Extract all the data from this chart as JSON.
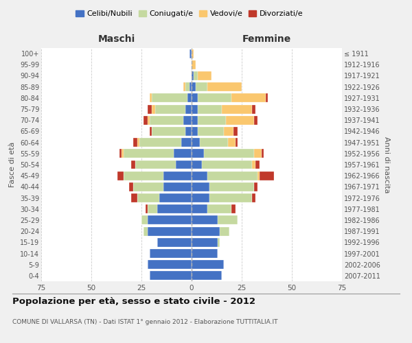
{
  "age_groups": [
    "0-4",
    "5-9",
    "10-14",
    "15-19",
    "20-24",
    "25-29",
    "30-34",
    "35-39",
    "40-44",
    "45-49",
    "50-54",
    "55-59",
    "60-64",
    "65-69",
    "70-74",
    "75-79",
    "80-84",
    "85-89",
    "90-94",
    "95-99",
    "100+"
  ],
  "birth_years": [
    "2007-2011",
    "2002-2006",
    "1997-2001",
    "1992-1996",
    "1987-1991",
    "1982-1986",
    "1977-1981",
    "1972-1976",
    "1967-1971",
    "1962-1966",
    "1957-1961",
    "1952-1956",
    "1947-1951",
    "1942-1946",
    "1937-1941",
    "1932-1936",
    "1927-1931",
    "1922-1926",
    "1917-1921",
    "1912-1916",
    "≤ 1911"
  ],
  "male": {
    "celibi": [
      21,
      22,
      21,
      17,
      22,
      22,
      17,
      16,
      14,
      14,
      8,
      9,
      5,
      3,
      4,
      3,
      2,
      1,
      0,
      0,
      1
    ],
    "coniugati": [
      0,
      0,
      0,
      0,
      2,
      3,
      5,
      11,
      15,
      20,
      20,
      25,
      21,
      17,
      17,
      15,
      18,
      2,
      0,
      0,
      0
    ],
    "vedovi": [
      0,
      0,
      0,
      0,
      0,
      0,
      0,
      0,
      0,
      0,
      0,
      1,
      1,
      0,
      1,
      2,
      1,
      1,
      0,
      0,
      0
    ],
    "divorziati": [
      0,
      0,
      0,
      0,
      0,
      0,
      1,
      3,
      2,
      3,
      2,
      1,
      2,
      1,
      2,
      2,
      0,
      0,
      0,
      0,
      0
    ]
  },
  "female": {
    "nubili": [
      15,
      16,
      13,
      13,
      14,
      13,
      8,
      9,
      9,
      8,
      5,
      6,
      4,
      3,
      3,
      3,
      3,
      2,
      1,
      0,
      0
    ],
    "coniugate": [
      0,
      0,
      0,
      1,
      5,
      10,
      12,
      21,
      22,
      25,
      25,
      25,
      14,
      13,
      14,
      12,
      17,
      6,
      2,
      0,
      0
    ],
    "vedove": [
      0,
      0,
      0,
      0,
      0,
      0,
      0,
      0,
      0,
      1,
      2,
      4,
      4,
      5,
      14,
      15,
      17,
      17,
      7,
      2,
      1
    ],
    "divorziate": [
      0,
      0,
      0,
      0,
      0,
      0,
      2,
      2,
      2,
      7,
      2,
      1,
      1,
      2,
      2,
      2,
      1,
      0,
      0,
      0,
      0
    ]
  },
  "colors": {
    "celibi": "#4472C4",
    "coniugati": "#C5D9A0",
    "vedovi": "#FAC76E",
    "divorziati": "#C0392B"
  },
  "xlim": 75,
  "title": "Popolazione per età, sesso e stato civile - 2012",
  "subtitle": "COMUNE DI VALLARSA (TN) - Dati ISTAT 1° gennaio 2012 - Elaborazione TUTTITALIA.IT",
  "ylabel_left": "Fasce di età",
  "ylabel_right": "Anni di nascita",
  "xlabel_left": "Maschi",
  "xlabel_right": "Femmine",
  "legend_labels": [
    "Celibi/Nubili",
    "Coniugati/e",
    "Vedovi/e",
    "Divorziati/e"
  ],
  "bg_color": "#f0f0f0",
  "plot_bg": "#ffffff"
}
